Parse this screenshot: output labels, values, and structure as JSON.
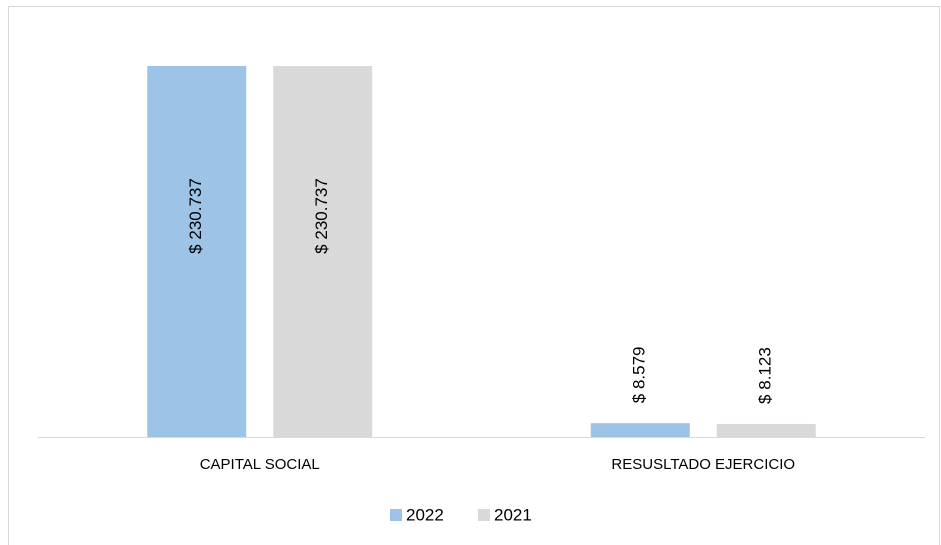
{
  "chart_data": {
    "type": "bar",
    "categories": [
      "CAPITAL SOCIAL",
      "RESUSLTADO EJERCICIO"
    ],
    "series": [
      {
        "name": "2022",
        "color": "#9dc3e6",
        "values": [
          230737,
          8579
        ],
        "value_labels": [
          "$ 230.737",
          "$ 8.579"
        ]
      },
      {
        "name": "2021",
        "color": "#d9d9d9",
        "values": [
          230737,
          8123
        ],
        "value_labels": [
          "$ 230.737",
          "$ 8.123"
        ]
      }
    ],
    "legend": "bottom"
  }
}
